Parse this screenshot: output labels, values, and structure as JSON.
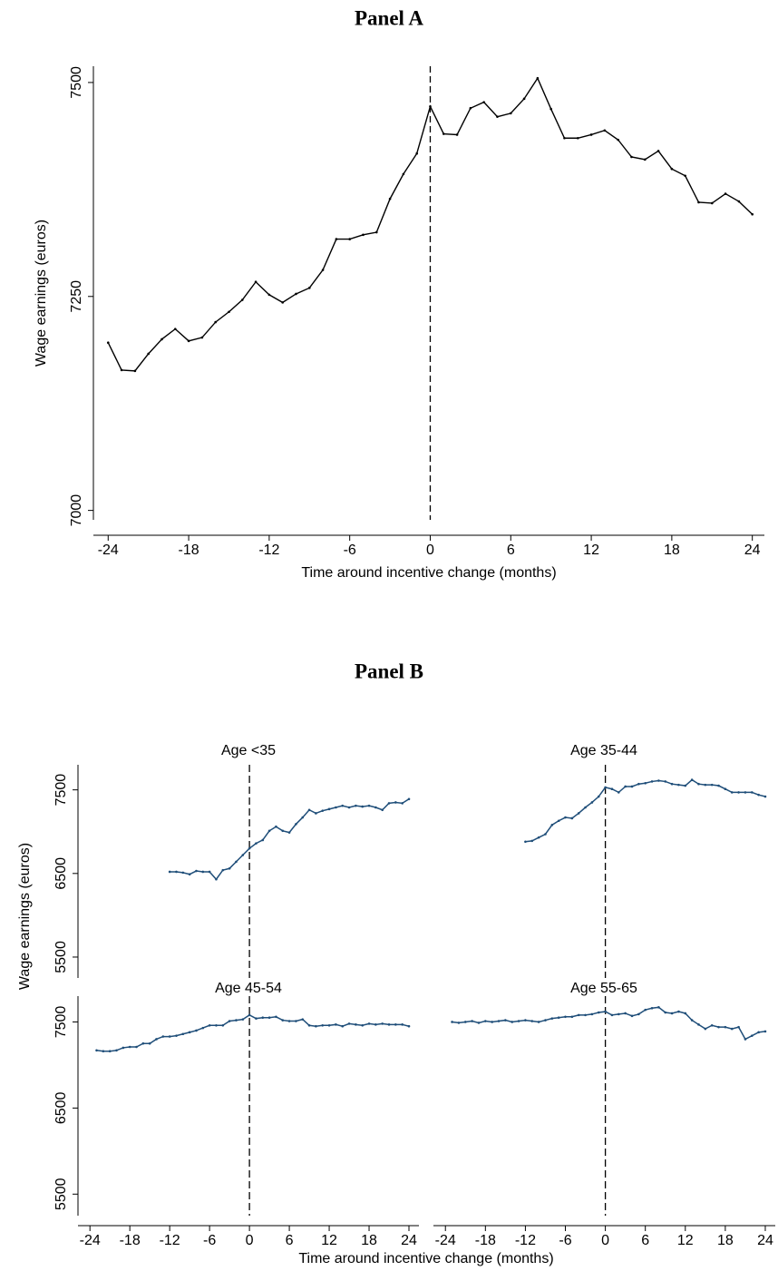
{
  "chart_data": [
    {
      "type": "line",
      "title": "Panel A",
      "x_label": "Time around incentive change (months)",
      "y_label": "Wage earnings (euros)",
      "x": [
        -24,
        -23,
        -22,
        -21,
        -20,
        -19,
        -18,
        -17,
        -16,
        -15,
        -14,
        -13,
        -12,
        -11,
        -10,
        -9,
        -8,
        -7,
        -6,
        -5,
        -4,
        -3,
        -2,
        -1,
        0,
        1,
        2,
        3,
        4,
        5,
        6,
        7,
        8,
        9,
        10,
        11,
        12,
        13,
        14,
        15,
        16,
        17,
        18,
        19,
        20,
        21,
        22,
        23,
        24
      ],
      "values": [
        7196,
        7164,
        7163,
        7183,
        7200,
        7212,
        7198,
        7202,
        7220,
        7232,
        7246,
        7267,
        7252,
        7243,
        7253,
        7260,
        7281,
        7317,
        7317,
        7322,
        7325,
        7364,
        7393,
        7417,
        7472,
        7440,
        7439,
        7470,
        7477,
        7460,
        7464,
        7481,
        7505,
        7469,
        7435,
        7435,
        7439,
        7444,
        7433,
        7413,
        7410,
        7420,
        7399,
        7391,
        7360,
        7359,
        7370,
        7361,
        7346
      ],
      "color": "#000000",
      "xlim": [
        -25.1,
        24.9
      ],
      "ylim": [
        6989,
        7519
      ],
      "xticks": [
        -24,
        -18,
        -12,
        -6,
        0,
        6,
        12,
        18,
        24
      ],
      "yticks": [
        7000,
        7250,
        7500
      ],
      "vline": 0
    },
    {
      "type": "line",
      "title": "Age <35",
      "x": [
        -12,
        -11,
        -10,
        -9,
        -8,
        -7,
        -6,
        -5,
        -4,
        -3,
        -2,
        -1,
        0,
        1,
        2,
        3,
        4,
        5,
        6,
        7,
        8,
        9,
        10,
        11,
        12,
        13,
        14,
        15,
        16,
        17,
        18,
        19,
        20,
        21,
        22,
        23,
        24
      ],
      "values": [
        6520,
        6520,
        6510,
        6490,
        6530,
        6520,
        6520,
        6430,
        6540,
        6560,
        6640,
        6720,
        6800,
        6860,
        6900,
        7010,
        7060,
        7010,
        6990,
        7090,
        7170,
        7260,
        7220,
        7250,
        7270,
        7290,
        7310,
        7290,
        7310,
        7300,
        7310,
        7290,
        7260,
        7340,
        7350,
        7340,
        7390
      ],
      "color": "#1f4e79",
      "xlim": [
        -25.8,
        25.5
      ],
      "ylim": [
        5250,
        7800
      ],
      "yticks": [
        5500,
        6500,
        7500
      ],
      "vline": 0
    },
    {
      "type": "line",
      "title": "Age 35-44",
      "x": [
        -12,
        -11,
        -10,
        -9,
        -8,
        -7,
        -6,
        -5,
        -4,
        -3,
        -2,
        -1,
        0,
        1,
        2,
        3,
        4,
        5,
        6,
        7,
        8,
        9,
        10,
        11,
        12,
        13,
        14,
        15,
        16,
        17,
        18,
        19,
        20,
        21,
        22,
        23,
        24
      ],
      "values": [
        6880,
        6890,
        6930,
        6970,
        7080,
        7130,
        7170,
        7160,
        7220,
        7290,
        7350,
        7420,
        7530,
        7510,
        7470,
        7540,
        7540,
        7570,
        7580,
        7600,
        7610,
        7600,
        7570,
        7560,
        7550,
        7620,
        7570,
        7560,
        7560,
        7550,
        7510,
        7470,
        7470,
        7470,
        7470,
        7440,
        7420
      ],
      "color": "#1f4e79",
      "xlim": [
        -25.8,
        25.5
      ],
      "ylim": [
        5250,
        7800
      ],
      "vline": 0
    },
    {
      "type": "line",
      "title": "Age 45-54",
      "x": [
        -23,
        -22,
        -21,
        -20,
        -19,
        -18,
        -17,
        -16,
        -15,
        -14,
        -13,
        -12,
        -11,
        -10,
        -9,
        -8,
        -7,
        -6,
        -5,
        -4,
        -3,
        -2,
        -1,
        0,
        1,
        2,
        3,
        4,
        5,
        6,
        7,
        8,
        9,
        10,
        11,
        12,
        13,
        14,
        15,
        16,
        17,
        18,
        19,
        20,
        21,
        22,
        23,
        24
      ],
      "values": [
        7170,
        7160,
        7160,
        7170,
        7200,
        7210,
        7210,
        7250,
        7250,
        7300,
        7330,
        7330,
        7340,
        7360,
        7380,
        7400,
        7430,
        7460,
        7460,
        7460,
        7510,
        7520,
        7530,
        7580,
        7540,
        7550,
        7550,
        7560,
        7520,
        7510,
        7510,
        7530,
        7460,
        7450,
        7460,
        7460,
        7470,
        7450,
        7480,
        7470,
        7460,
        7480,
        7470,
        7480,
        7470,
        7470,
        7470,
        7450
      ],
      "color": "#1f4e79",
      "xlim": [
        -25.8,
        25.5
      ],
      "ylim": [
        5250,
        7800
      ],
      "xticks": [
        -24,
        -18,
        -12,
        -6,
        0,
        6,
        12,
        18,
        24
      ],
      "yticks": [
        5500,
        6500,
        7500
      ],
      "vline": 0
    },
    {
      "type": "line",
      "title": "Age 55-65",
      "x": [
        -23,
        -22,
        -21,
        -20,
        -19,
        -18,
        -17,
        -16,
        -15,
        -14,
        -13,
        -12,
        -11,
        -10,
        -9,
        -8,
        -7,
        -6,
        -5,
        -4,
        -3,
        -2,
        -1,
        0,
        1,
        2,
        3,
        4,
        5,
        6,
        7,
        8,
        9,
        10,
        11,
        12,
        13,
        14,
        15,
        16,
        17,
        18,
        19,
        20,
        21,
        22,
        23,
        24
      ],
      "values": [
        7500,
        7490,
        7500,
        7510,
        7490,
        7510,
        7500,
        7510,
        7520,
        7500,
        7510,
        7520,
        7510,
        7500,
        7520,
        7540,
        7550,
        7560,
        7560,
        7580,
        7580,
        7590,
        7610,
        7620,
        7580,
        7590,
        7600,
        7570,
        7590,
        7640,
        7660,
        7670,
        7610,
        7600,
        7620,
        7600,
        7520,
        7470,
        7420,
        7460,
        7440,
        7440,
        7420,
        7440,
        7300,
        7340,
        7380,
        7390
      ],
      "color": "#1f4e79",
      "xlim": [
        -25.8,
        25.5
      ],
      "ylim": [
        5250,
        7800
      ],
      "xticks": [
        -24,
        -18,
        -12,
        -6,
        0,
        6,
        12,
        18,
        24
      ],
      "vline": 0
    }
  ],
  "panel_b": {
    "title": "Panel B",
    "x_label": "Time around incentive change (months)",
    "y_label": "Wage earnings (euros)"
  }
}
